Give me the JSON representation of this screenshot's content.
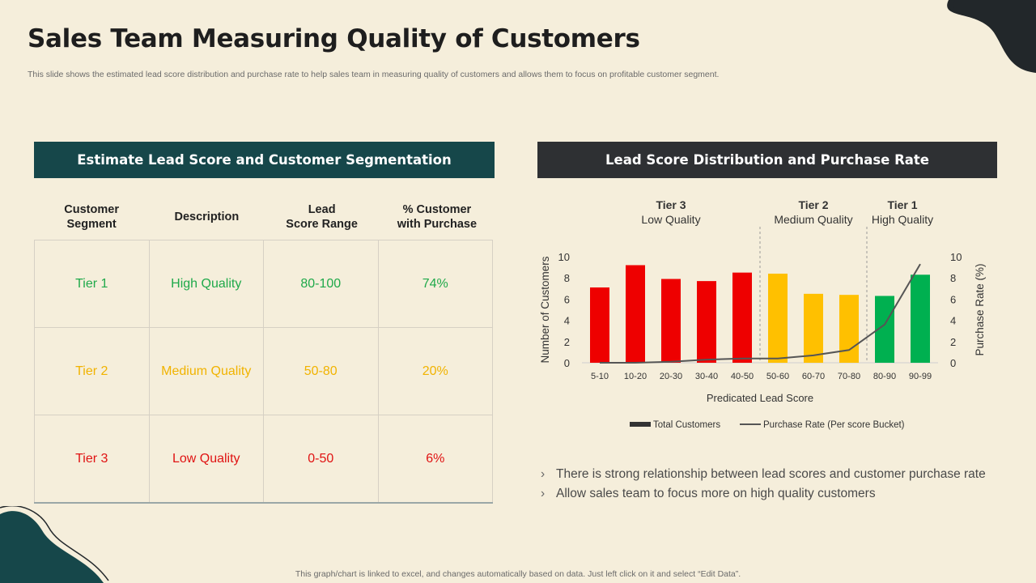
{
  "title": "Sales Team Measuring Quality of Customers",
  "subtitle": "This slide shows the estimated lead score distribution and purchase rate to help sales team in measuring quality of customers and allows them to focus on profitable customer segment.",
  "left_panel": {
    "header": "Estimate Lead Score and Customer Segmentation",
    "columns": [
      "Customer\nSegment",
      "Description",
      "Lead\nScore Range",
      "% Customer\nwith Purchase"
    ],
    "rows": [
      {
        "segment": "Tier 1",
        "description": "High Quality",
        "range": "80-100",
        "purchase": "74%",
        "color": "#1fa94a"
      },
      {
        "segment": "Tier 2",
        "description": "Medium Quality",
        "range": "50-80",
        "purchase": "20%",
        "color": "#f1b300"
      },
      {
        "segment": "Tier 3",
        "description": "Low Quality",
        "range": "0-50",
        "purchase": "6%",
        "color": "#e01212"
      }
    ]
  },
  "right_panel": {
    "header": "Lead Score Distribution and Purchase Rate"
  },
  "chart_data": {
    "type": "bar",
    "title": "Lead Score Distribution and Purchase Rate",
    "categories": [
      "5-10",
      "10-20",
      "20-30",
      "30-40",
      "40-50",
      "50-60",
      "60-70",
      "70-80",
      "80-90",
      "90-99"
    ],
    "series": [
      {
        "name": "Total Customers",
        "type": "bar",
        "axis": "left",
        "values": [
          7.1,
          9.2,
          7.9,
          7.7,
          8.5,
          8.4,
          6.5,
          6.4,
          6.3,
          8.3
        ],
        "colors": [
          "#ee0000",
          "#ee0000",
          "#ee0000",
          "#ee0000",
          "#ee0000",
          "#ffc000",
          "#ffc000",
          "#ffc000",
          "#00b050",
          "#00b050"
        ]
      },
      {
        "name": "Purchase Rate (Per score Bucket)",
        "type": "line",
        "axis": "right",
        "values": [
          0.0,
          0.0,
          0.1,
          0.3,
          0.4,
          0.4,
          0.7,
          1.2,
          3.6,
          9.3
        ],
        "color": "#555555"
      }
    ],
    "xlabel": "Predicated Lead Score",
    "ylabel": "Number of Customers",
    "y2label": "Purchase Rate (%)",
    "ylim": [
      0,
      10
    ],
    "y2lim": [
      0,
      10
    ],
    "yticks": [
      "0",
      "2",
      "4",
      "6",
      "8",
      "10"
    ],
    "y2ticks": [
      "0",
      "2",
      "4",
      "6",
      "8",
      "10"
    ],
    "tiers": [
      {
        "name": "Tier 3",
        "quality": "Low Quality",
        "start": 0,
        "end": 5
      },
      {
        "name": "Tier 2",
        "quality": "Medium Quality",
        "start": 5,
        "end": 8
      },
      {
        "name": "Tier 1",
        "quality": "High Quality",
        "start": 8,
        "end": 10
      }
    ],
    "grid": false,
    "legend": "bottom"
  },
  "bullets": [
    "There is strong relationship between lead scores and customer purchase rate",
    "Allow sales team to focus more on high quality customers"
  ],
  "bullet_glyph": "›",
  "footer": "This graph/chart is linked to excel, and changes automatically based on data. Just left click on it and select “Edit Data”."
}
